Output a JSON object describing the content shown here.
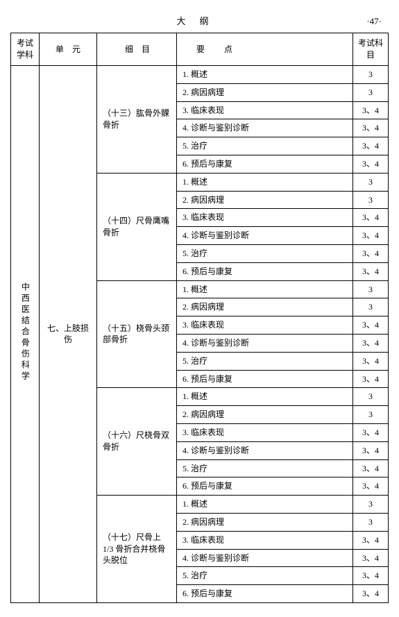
{
  "header": {
    "center": "大纲",
    "right": "·47·"
  },
  "columns": {
    "subject": "考试学科",
    "unit": "单　元",
    "detail": "细　目",
    "point": "要点",
    "exam": "考试科目"
  },
  "subject": "中西医结合骨伤科学",
  "unit": "七、上肢损伤",
  "sections": [
    {
      "detail": "（十三）肱骨外髁骨折",
      "points": [
        {
          "t": "1. 概述",
          "e": "3"
        },
        {
          "t": "2. 病因病理",
          "e": "3"
        },
        {
          "t": "3. 临床表现",
          "e": "3、4"
        },
        {
          "t": "4. 诊断与鉴别诊断",
          "e": "3、4"
        },
        {
          "t": "5. 治疗",
          "e": "3、4"
        },
        {
          "t": "6. 预后与康复",
          "e": "3、4"
        }
      ]
    },
    {
      "detail": "（十四）尺骨鹰嘴骨折",
      "points": [
        {
          "t": "1. 概述",
          "e": "3"
        },
        {
          "t": "2. 病因病理",
          "e": "3"
        },
        {
          "t": "3. 临床表现",
          "e": "3、4"
        },
        {
          "t": "4. 诊断与鉴别诊断",
          "e": "3、4"
        },
        {
          "t": "5. 治疗",
          "e": "3、4"
        },
        {
          "t": "6. 预后与康复",
          "e": "3、4"
        }
      ]
    },
    {
      "detail": "（十五）桡骨头颈部骨折",
      "points": [
        {
          "t": "1. 概述",
          "e": "3"
        },
        {
          "t": "2. 病因病理",
          "e": "3"
        },
        {
          "t": "3. 临床表现",
          "e": "3、4"
        },
        {
          "t": "4. 诊断与鉴别诊断",
          "e": "3、4"
        },
        {
          "t": "5. 治疗",
          "e": "3、4"
        },
        {
          "t": "6. 预后与康复",
          "e": "3、4"
        }
      ]
    },
    {
      "detail": "（十六）尺桡骨双骨折",
      "points": [
        {
          "t": "1. 概述",
          "e": "3"
        },
        {
          "t": "2. 病因病理",
          "e": "3"
        },
        {
          "t": "3. 临床表现",
          "e": "3、4"
        },
        {
          "t": "4. 诊断与鉴别诊断",
          "e": "3、4"
        },
        {
          "t": "5. 治疗",
          "e": "3、4"
        },
        {
          "t": "6. 预后与康复",
          "e": "3、4"
        }
      ]
    },
    {
      "detail": "（十七）尺骨上 1/3 骨折合并桡骨头脱位",
      "points": [
        {
          "t": "1. 概述",
          "e": "3"
        },
        {
          "t": "2. 病因病理",
          "e": "3"
        },
        {
          "t": "3. 临床表现",
          "e": "3、4"
        },
        {
          "t": "4. 诊断与鉴别诊断",
          "e": "3、4"
        },
        {
          "t": "5. 治疗",
          "e": "3、4"
        },
        {
          "t": "6. 预后与康复",
          "e": "3、4"
        }
      ]
    }
  ]
}
